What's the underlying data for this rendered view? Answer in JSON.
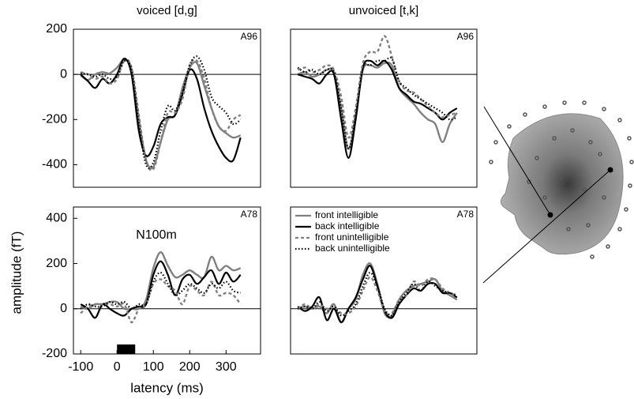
{
  "chart_data": [
    {
      "type": "line",
      "title": "voiced [d,g]",
      "label": "A96",
      "x": [
        -100,
        -80,
        -60,
        -40,
        -20,
        0,
        20,
        40,
        60,
        80,
        100,
        120,
        140,
        160,
        180,
        200,
        220,
        240,
        260,
        280,
        300,
        320,
        340
      ],
      "xlim": [
        -120,
        395
      ],
      "ylim": [
        -500,
        200
      ],
      "yticks": [
        -400,
        -200,
        0,
        200
      ],
      "series": [
        {
          "color": "#808080",
          "style": "solid",
          "values": [
            -5,
            -25,
            0,
            10,
            5,
            30,
            65,
            20,
            -200,
            -380,
            -410,
            -300,
            -200,
            -180,
            -60,
            30,
            50,
            -50,
            -150,
            -230,
            -260,
            -280,
            -270
          ]
        },
        {
          "color": "#000000",
          "style": "solid",
          "values": [
            0,
            -30,
            -60,
            -20,
            -40,
            0,
            70,
            0,
            -250,
            -360,
            -320,
            -220,
            -190,
            -180,
            -90,
            20,
            -20,
            -150,
            -250,
            -320,
            -370,
            -380,
            -280
          ]
        },
        {
          "color": "#808080",
          "style": "dashed",
          "values": [
            10,
            0,
            -20,
            -10,
            -40,
            -20,
            60,
            30,
            -180,
            -380,
            -420,
            -300,
            -170,
            -170,
            -110,
            40,
            60,
            -20,
            -150,
            -230,
            -250,
            -200,
            -180
          ]
        },
        {
          "color": "#000000",
          "style": "dotted",
          "values": [
            5,
            0,
            -10,
            0,
            -20,
            -10,
            60,
            20,
            -220,
            -400,
            -390,
            -250,
            -140,
            -160,
            -80,
            40,
            80,
            20,
            -100,
            -140,
            -170,
            -220,
            -200
          ]
        }
      ]
    },
    {
      "type": "line",
      "title": "unvoiced [t,k]",
      "label": "A96",
      "x": [
        -100,
        -80,
        -60,
        -40,
        -20,
        0,
        20,
        40,
        60,
        80,
        100,
        120,
        140,
        160,
        180,
        200,
        220,
        240,
        260,
        280,
        300,
        320,
        340
      ],
      "xlim": [
        -120,
        395
      ],
      "ylim": [
        -500,
        200
      ],
      "series": [
        {
          "color": "#808080",
          "style": "solid",
          "values": [
            0,
            10,
            -10,
            0,
            20,
            10,
            -150,
            -330,
            -180,
            20,
            40,
            30,
            50,
            40,
            -60,
            -100,
            -130,
            -170,
            -200,
            -220,
            -300,
            -220,
            -170
          ]
        },
        {
          "color": "#000000",
          "style": "solid",
          "values": [
            0,
            -10,
            -20,
            -40,
            0,
            0,
            -200,
            -370,
            -200,
            30,
            60,
            40,
            60,
            20,
            -60,
            -90,
            -120,
            -130,
            -150,
            -170,
            -200,
            -170,
            -150
          ]
        },
        {
          "color": "#808080",
          "style": "dashed",
          "values": [
            20,
            30,
            10,
            20,
            40,
            20,
            -100,
            -280,
            -150,
            50,
            100,
            100,
            170,
            80,
            -30,
            -70,
            -80,
            -110,
            -140,
            -170,
            -190,
            -180,
            -170
          ]
        },
        {
          "color": "#000000",
          "style": "dotted",
          "values": [
            30,
            10,
            20,
            0,
            20,
            10,
            -150,
            -330,
            -180,
            30,
            40,
            60,
            60,
            70,
            -30,
            -60,
            -90,
            -110,
            -130,
            -150,
            -170,
            -200,
            -190
          ]
        }
      ]
    },
    {
      "type": "line",
      "label": "A78",
      "annotation": "N100m",
      "xlabel": "latency (ms)",
      "ylabel": "amplitude (fT)",
      "x": [
        -100,
        -80,
        -60,
        -40,
        -20,
        0,
        20,
        40,
        60,
        80,
        100,
        120,
        140,
        160,
        180,
        200,
        220,
        240,
        260,
        280,
        300,
        320,
        340
      ],
      "xlim": [
        -120,
        395
      ],
      "xticks": [
        -100,
        0,
        100,
        200,
        300
      ],
      "ylim": [
        -200,
        450
      ],
      "yticks": [
        -200,
        0,
        200,
        400
      ],
      "stimulus": [
        0,
        50
      ],
      "series": [
        {
          "color": "#808080",
          "style": "solid",
          "values": [
            10,
            0,
            20,
            20,
            30,
            30,
            0,
            0,
            0,
            40,
            180,
            250,
            190,
            140,
            150,
            170,
            150,
            140,
            230,
            170,
            190,
            170,
            180
          ]
        },
        {
          "color": "#000000",
          "style": "solid",
          "values": [
            20,
            0,
            -40,
            20,
            0,
            -20,
            -30,
            0,
            10,
            20,
            150,
            210,
            150,
            60,
            130,
            150,
            110,
            140,
            170,
            110,
            160,
            120,
            150
          ]
        },
        {
          "color": "#808080",
          "style": "dashed",
          "values": [
            -20,
            10,
            20,
            20,
            20,
            10,
            20,
            -60,
            0,
            20,
            110,
            130,
            100,
            80,
            20,
            100,
            80,
            60,
            120,
            60,
            70,
            60,
            20
          ]
        },
        {
          "color": "#000000",
          "style": "dotted",
          "values": [
            0,
            20,
            10,
            10,
            30,
            20,
            30,
            0,
            20,
            20,
            120,
            160,
            110,
            60,
            80,
            110,
            90,
            70,
            110,
            90,
            120,
            80,
            70
          ]
        }
      ]
    },
    {
      "type": "line",
      "label": "A78",
      "legend": "upper left",
      "x": [
        -100,
        -80,
        -60,
        -40,
        -20,
        0,
        20,
        40,
        60,
        80,
        100,
        120,
        140,
        160,
        180,
        200,
        220,
        240,
        260,
        280,
        300,
        320,
        340
      ],
      "xlim": [
        -120,
        395
      ],
      "ylim": [
        -200,
        450
      ],
      "series": [
        {
          "name": "front intelligible",
          "color": "#808080",
          "style": "solid",
          "values": [
            0,
            10,
            0,
            10,
            -20,
            20,
            -60,
            0,
            40,
            150,
            200,
            110,
            -20,
            -30,
            40,
            80,
            100,
            110,
            120,
            130,
            80,
            60,
            40
          ]
        },
        {
          "name": "back intelligible",
          "color": "#000000",
          "style": "solid",
          "values": [
            10,
            -10,
            10,
            50,
            -50,
            0,
            -60,
            0,
            50,
            130,
            190,
            100,
            -10,
            -40,
            20,
            60,
            90,
            80,
            110,
            110,
            70,
            70,
            50
          ]
        },
        {
          "name": "front unintelligible",
          "color": "#808080",
          "style": "dashed",
          "values": [
            0,
            20,
            0,
            20,
            0,
            10,
            -20,
            -20,
            10,
            80,
            140,
            80,
            -10,
            -20,
            40,
            60,
            120,
            100,
            130,
            130,
            90,
            70,
            60
          ]
        },
        {
          "name": "back unintelligible",
          "color": "#000000",
          "style": "dotted",
          "values": [
            0,
            10,
            0,
            30,
            -10,
            10,
            -30,
            -10,
            20,
            100,
            160,
            100,
            0,
            -30,
            30,
            70,
            110,
            80,
            120,
            100,
            80,
            70,
            60
          ]
        }
      ]
    }
  ]
}
